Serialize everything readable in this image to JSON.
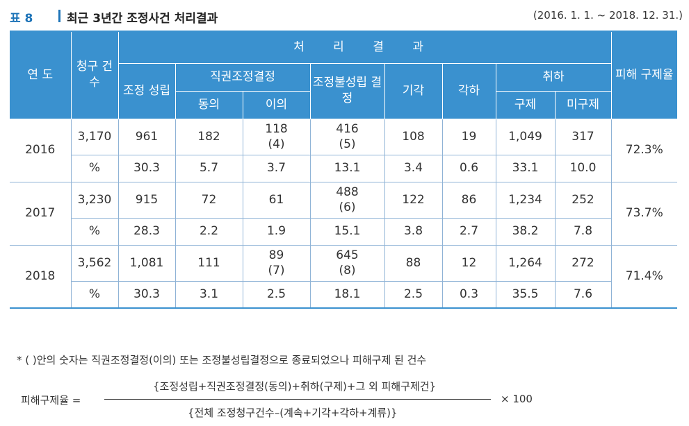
{
  "title": {
    "number": "표 8",
    "text": "최근 3년간 조정사건 처리결과",
    "date_range": "(2016. 1. 1. ~ 2018. 12. 31.)"
  },
  "table": {
    "headers": {
      "year": "연 도",
      "claims": "청구 건수",
      "processing": "처 리 결 과",
      "mediation_success": "조정 성립",
      "ex_officio": "직권조정결정",
      "agree": "동의",
      "objection": "이의",
      "mediation_fail": "조정불성립 결정",
      "dismissal": "기각",
      "rejection": "각하",
      "withdrawal": "취하",
      "relief": "구제",
      "no_relief": "미구제",
      "relief_rate": "피해 구제율"
    },
    "rows": [
      {
        "year": "2016",
        "claims": "3,170",
        "mediation": "961",
        "agree": "182",
        "objection": "118",
        "objection_sub": "(4)",
        "fail": "416",
        "fail_sub": "(5)",
        "dismissal": "108",
        "rejection": "19",
        "relief": "1,049",
        "no_relief": "317",
        "rate": "72.3%",
        "pct_label": "%",
        "p_mediation": "30.3",
        "p_agree": "5.7",
        "p_objection": "3.7",
        "p_fail": "13.1",
        "p_dismissal": "3.4",
        "p_rejection": "0.6",
        "p_relief": "33.1",
        "p_no_relief": "10.0"
      },
      {
        "year": "2017",
        "claims": "3,230",
        "mediation": "915",
        "agree": "72",
        "objection": "61",
        "objection_sub": "",
        "fail": "488",
        "fail_sub": "(6)",
        "dismissal": "122",
        "rejection": "86",
        "relief": "1,234",
        "no_relief": "252",
        "rate": "73.7%",
        "pct_label": "%",
        "p_mediation": "28.3",
        "p_agree": "2.2",
        "p_objection": "1.9",
        "p_fail": "15.1",
        "p_dismissal": "3.8",
        "p_rejection": "2.7",
        "p_relief": "38.2",
        "p_no_relief": "7.8"
      },
      {
        "year": "2018",
        "claims": "3,562",
        "mediation": "1,081",
        "agree": "111",
        "objection": "89",
        "objection_sub": "(7)",
        "fail": "645",
        "fail_sub": "(8)",
        "dismissal": "88",
        "rejection": "12",
        "relief": "1,264",
        "no_relief": "272",
        "rate": "71.4%",
        "pct_label": "%",
        "p_mediation": "30.3",
        "p_agree": "3.1",
        "p_objection": "2.5",
        "p_fail": "18.1",
        "p_dismissal": "2.5",
        "p_rejection": "0.3",
        "p_relief": "35.5",
        "p_no_relief": "7.6"
      }
    ]
  },
  "footnote": "* ( )안의 숫자는 직권조정결정(이의) 또는 조정불성립결정으로 종료되었으나 피해구제 된 건수",
  "formula": {
    "label": "피해구제율 =",
    "numerator": "{조정성립+직권조정결정(동의)+취하(구제)+그 외 피해구제건}",
    "denominator": "{전체 조정청구건수–(계속+기각+각하+계류)}",
    "multiplier": "× 100"
  }
}
